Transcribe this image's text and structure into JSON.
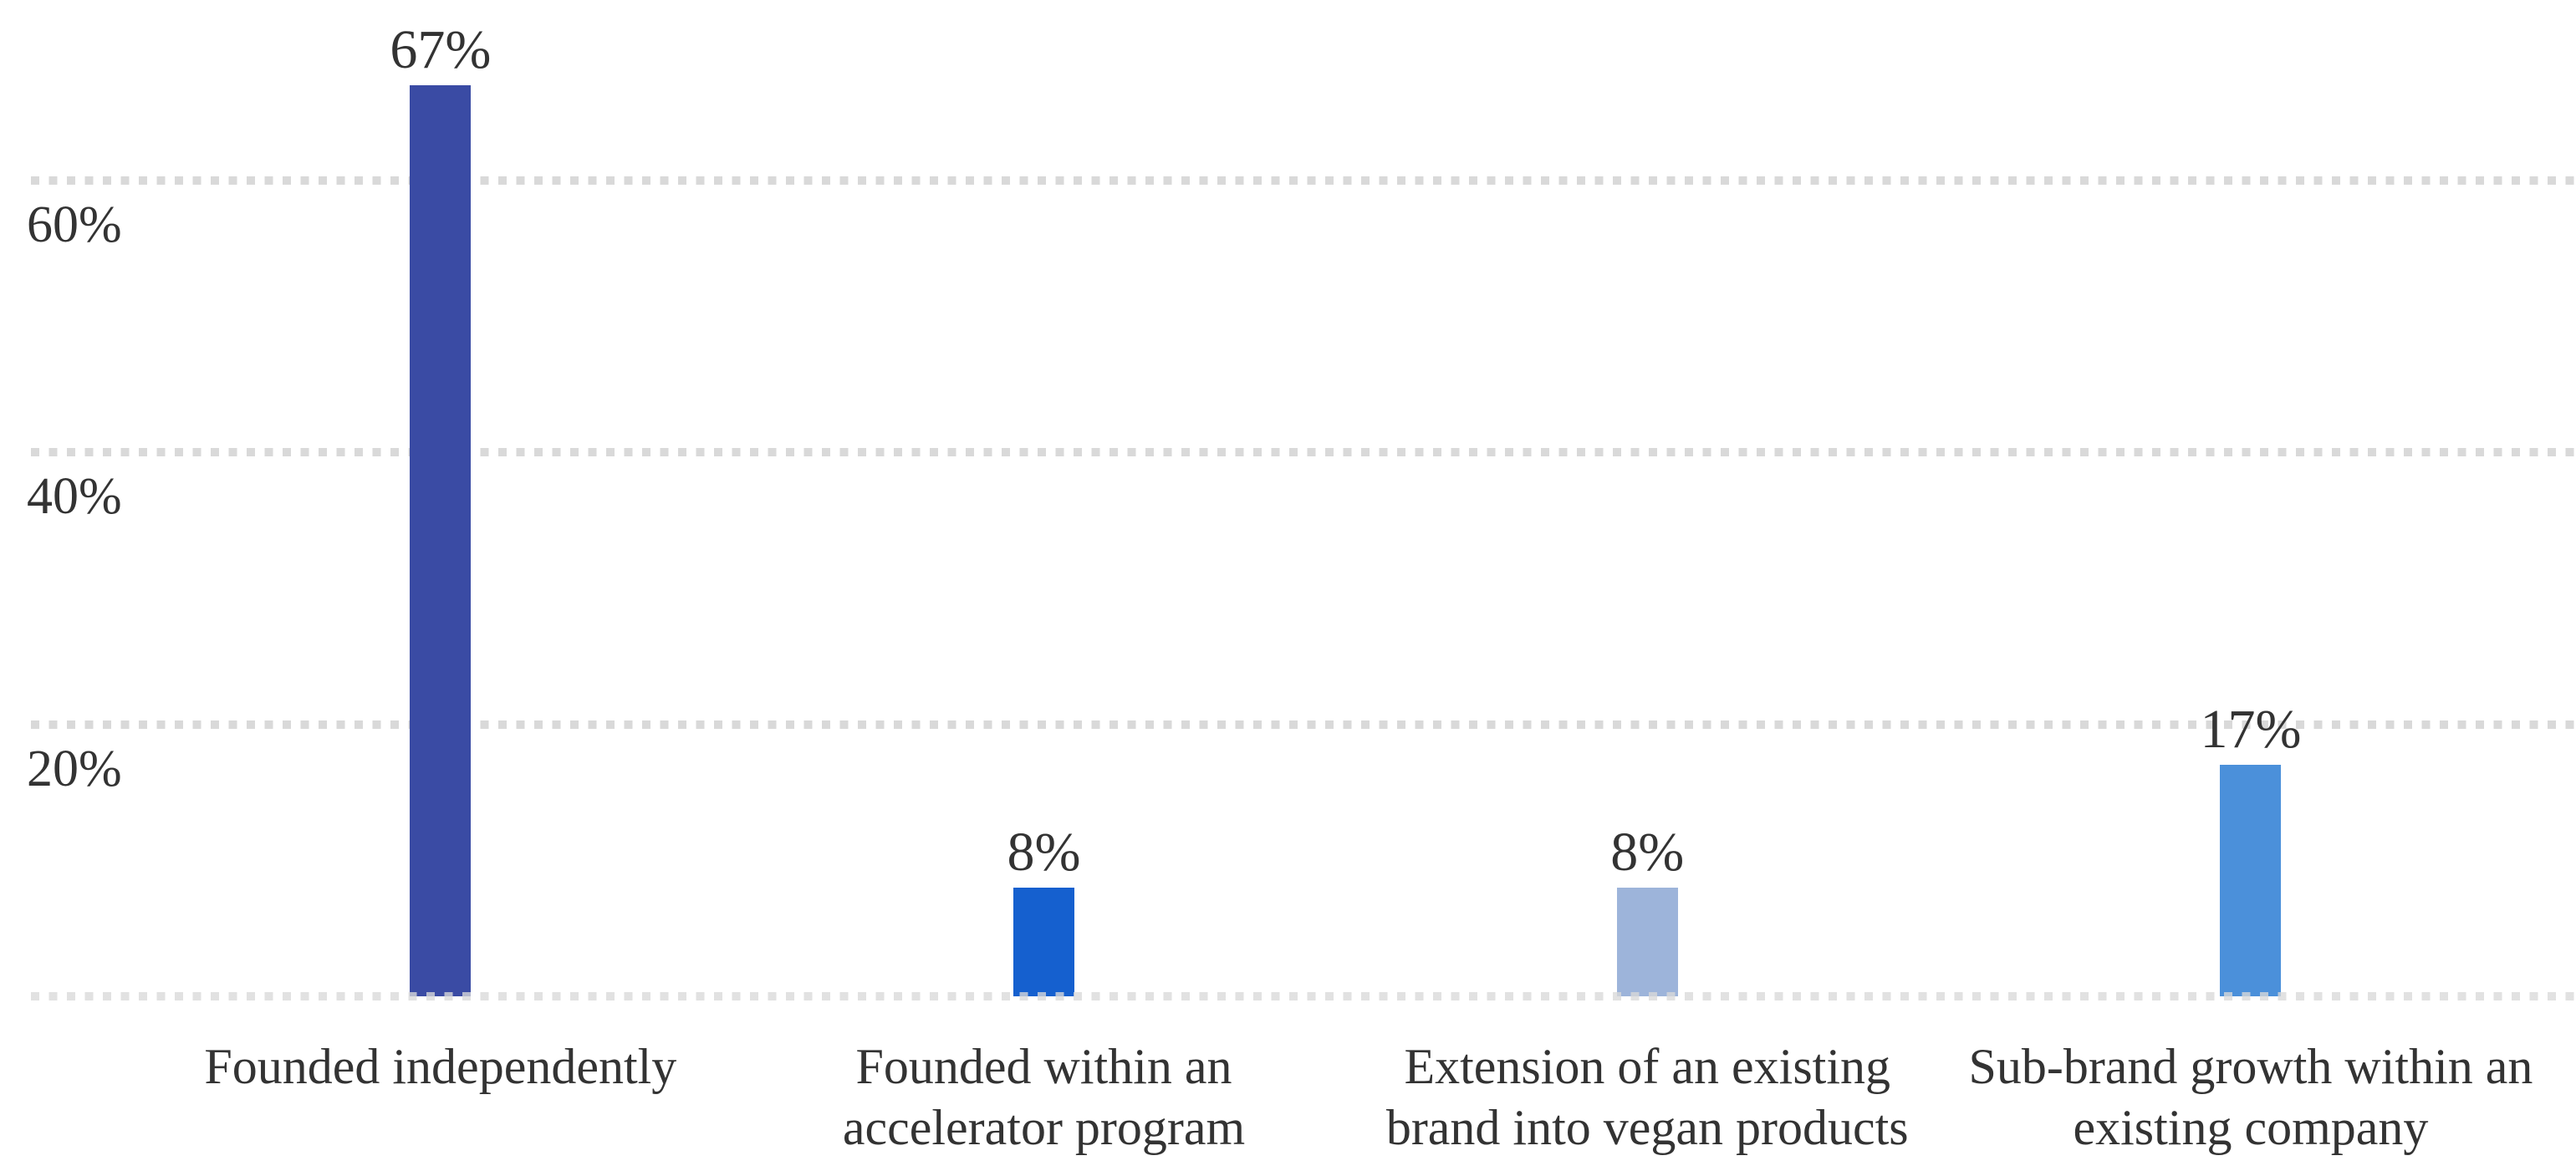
{
  "chart_data": {
    "type": "bar",
    "title": "",
    "categories": [
      "Founded independently",
      "Founded within an accelerator program",
      "Extension of an existing brand into vegan products",
      "Sub-brand growth within an existing company"
    ],
    "category_label_lines": [
      [
        "Founded independently"
      ],
      [
        "Founded within an",
        "accelerator program"
      ],
      [
        "Extension of an existing",
        "brand into vegan products"
      ],
      [
        "Sub-brand growth within an",
        "existing company"
      ]
    ],
    "values": [
      67,
      8,
      8,
      17
    ],
    "value_labels": [
      "67%",
      "8%",
      "8%",
      "17%"
    ],
    "unit": "%",
    "yaxis": {
      "tick_labels": [
        "60%",
        "40%",
        "20%"
      ],
      "tick_values": [
        60,
        40,
        20
      ],
      "range": [
        0,
        73
      ],
      "grid": "dotted horizontal gridlines at 0%, 20%, 40%, 60%"
    },
    "legend": null,
    "colors": {
      "bars": [
        "#3a4ba4",
        "#1560cf",
        "#9db4da",
        "#4b90da"
      ],
      "gridline": "#d9d9d9",
      "text": "#333333",
      "background": "#ffffff"
    }
  }
}
